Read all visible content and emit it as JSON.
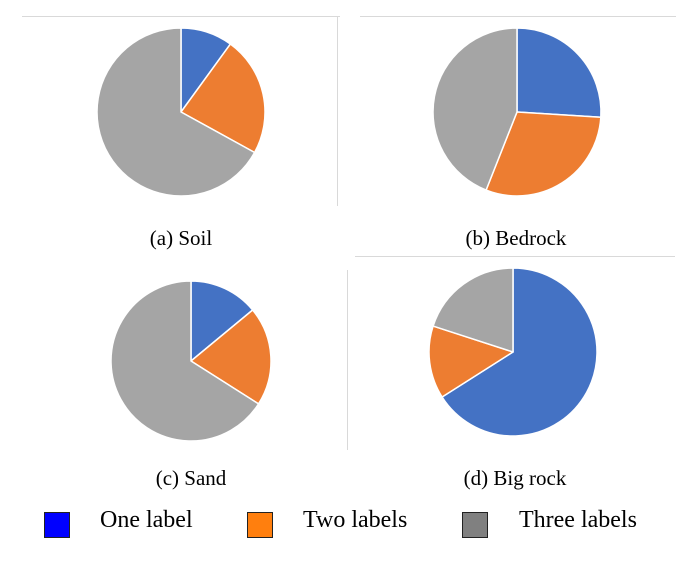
{
  "chart_data": [
    {
      "type": "pie",
      "title": "",
      "caption": "(a) Soil",
      "categories": [
        "One label",
        "Two labels",
        "Three labels"
      ],
      "values": [
        10,
        23,
        67
      ],
      "colors": [
        "#4472c4",
        "#ed7d31",
        "#a5a5a5"
      ]
    },
    {
      "type": "pie",
      "title": "",
      "caption": "(b) Bedrock",
      "categories": [
        "One label",
        "Two labels",
        "Three labels"
      ],
      "values": [
        26,
        30,
        44
      ],
      "colors": [
        "#4472c4",
        "#ed7d31",
        "#a5a5a5"
      ]
    },
    {
      "type": "pie",
      "title": "",
      "caption": "(c) Sand",
      "categories": [
        "One label",
        "Two labels",
        "Three labels"
      ],
      "values": [
        14,
        20,
        66
      ],
      "colors": [
        "#4472c4",
        "#ed7d31",
        "#a5a5a5"
      ]
    },
    {
      "type": "pie",
      "title": "",
      "caption": "(d) Big rock",
      "categories": [
        "One label",
        "Two labels",
        "Three labels"
      ],
      "values": [
        66,
        14,
        20
      ],
      "colors": [
        "#4472c4",
        "#ed7d31",
        "#a5a5a5"
      ]
    }
  ],
  "legend": {
    "items": [
      {
        "label": "One label",
        "color": "#0000ff"
      },
      {
        "label": "Two labels",
        "color": "#ff7f0e"
      },
      {
        "label": "Three labels",
        "color": "#808080"
      }
    ]
  }
}
